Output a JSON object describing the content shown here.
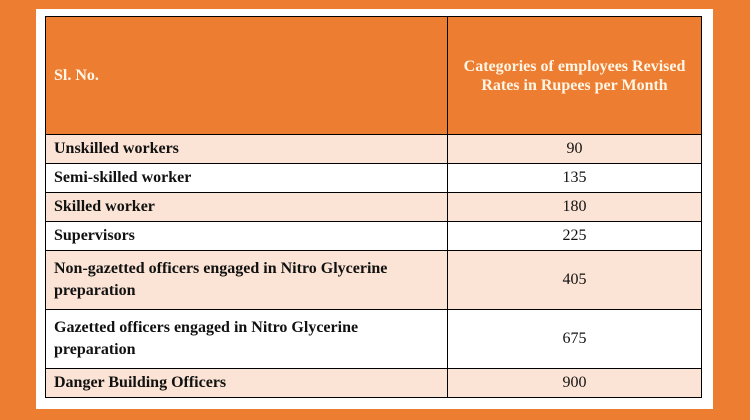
{
  "table": {
    "headers": [
      "Sl. No.",
      "Categories of employees Revised Rates in Rupees per Month"
    ],
    "rows": [
      {
        "category": "Unskilled workers",
        "rate": "90"
      },
      {
        "category": "Semi-skilled worker",
        "rate": "135"
      },
      {
        "category": "Skilled worker",
        "rate": "180"
      },
      {
        "category": "Supervisors",
        "rate": "225"
      },
      {
        "category": "Non-gazetted officers engaged in Nitro Glycerine preparation",
        "rate": "405"
      },
      {
        "category": "Gazetted officers engaged in Nitro Glycerine preparation",
        "rate": "675"
      },
      {
        "category": "Danger Building Officers",
        "rate": "900"
      }
    ]
  },
  "colors": {
    "background": "#ed7d31",
    "header": "#ed7d31",
    "shaded_row": "#fbe4d5"
  }
}
